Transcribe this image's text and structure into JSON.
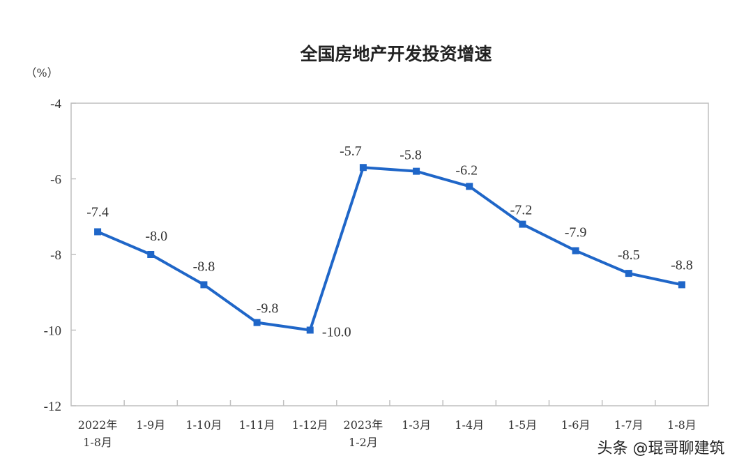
{
  "header": {
    "title": "全国房地产开发投资增速",
    "unit": "（%）"
  },
  "watermark": "头条 @琨哥聊建筑",
  "colors": {
    "line": "#1f66c8",
    "axis": "#bfbfbf",
    "text": "#333333"
  },
  "chart_data": {
    "type": "line",
    "title": "全国房地产开发投资增速",
    "ylabel": "（%）",
    "xlabel": "",
    "ylim": [
      -12,
      -4
    ],
    "yticks": [
      -4,
      -6,
      -8,
      -10,
      -12
    ],
    "grid": false,
    "legend": null,
    "categories": [
      "2022年 1-8月",
      "1-9月",
      "1-10月",
      "1-11月",
      "1-12月",
      "2023年 1-2月",
      "1-3月",
      "1-4月",
      "1-5月",
      "1-6月",
      "1-7月",
      "1-8月"
    ],
    "category_lines": [
      [
        "2022年",
        "1-8月"
      ],
      [
        "1-9月"
      ],
      [
        "1-10月"
      ],
      [
        "1-11月"
      ],
      [
        "1-12月"
      ],
      [
        "2023年",
        "1-2月"
      ],
      [
        "1-3月"
      ],
      [
        "1-4月"
      ],
      [
        "1-5月"
      ],
      [
        "1-6月"
      ],
      [
        "1-7月"
      ],
      [
        "1-8月"
      ]
    ],
    "series": [
      {
        "name": "全国房地产开发投资增速",
        "values": [
          -7.4,
          -8.0,
          -8.8,
          -9.8,
          -10.0,
          -5.7,
          -5.8,
          -6.2,
          -7.2,
          -7.9,
          -8.5,
          -8.8
        ],
        "labels": [
          "-7.4",
          "-8.0",
          "-8.8",
          "-9.8",
          "-10.0",
          "-5.7",
          "-5.8",
          "-6.2",
          "-7.2",
          "-7.9",
          "-8.5",
          "-8.8"
        ]
      }
    ]
  }
}
